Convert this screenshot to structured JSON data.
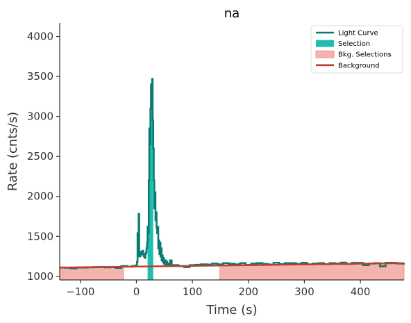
{
  "chart_data": {
    "type": "line",
    "title": "na",
    "xlabel": "Time (s)",
    "ylabel": "Rate (cnts/s)",
    "xlim": [
      -137,
      478
    ],
    "ylim": [
      955,
      4170
    ],
    "x_ticks": [
      -100,
      0,
      100,
      200,
      300,
      400
    ],
    "x_tick_labels": [
      "−100",
      "0",
      "100",
      "200",
      "300",
      "400"
    ],
    "y_ticks": [
      1000,
      1500,
      2000,
      2500,
      3000,
      3500,
      4000
    ],
    "y_tick_labels": [
      "1000",
      "1500",
      "2000",
      "2500",
      "3000",
      "3500",
      "4000"
    ],
    "grid": false,
    "legend_position": "top-right",
    "colors": {
      "light_curve": "#0b7a72",
      "selection": "#1fbfb0",
      "bkg_selection_fill": "#f4b3ad",
      "bkg_selection_edge": "#e8847b",
      "background": "#c23b2b"
    },
    "legend": [
      {
        "label": "Light Curve",
        "kind": "line",
        "color": "#0b7a72"
      },
      {
        "label": "Selection",
        "kind": "patch",
        "color": "#1fbfb0"
      },
      {
        "label": "Bkg. Selections",
        "kind": "patch",
        "color": "#f4b3ad"
      },
      {
        "label": "Background",
        "kind": "line",
        "color": "#c23b2b"
      }
    ],
    "bkg_selections": [
      [
        -137,
        -23
      ],
      [
        149,
        478
      ]
    ],
    "selection": [
      20,
      30
    ],
    "background_line": {
      "x": [
        -137,
        478
      ],
      "y": [
        1110,
        1165
      ]
    },
    "light_curve": [
      [
        -137,
        1110
      ],
      [
        -127,
        1108
      ],
      [
        -117,
        1100
      ],
      [
        -107,
        1110
      ],
      [
        -97,
        1110
      ],
      [
        -87,
        1113
      ],
      [
        -77,
        1115
      ],
      [
        -67,
        1118
      ],
      [
        -57,
        1112
      ],
      [
        -47,
        1115
      ],
      [
        -37,
        1105
      ],
      [
        -27,
        1128
      ],
      [
        -17,
        1122
      ],
      [
        -7,
        1130
      ],
      [
        0,
        1140
      ],
      [
        1,
        1180
      ],
      [
        2,
        1540
      ],
      [
        3,
        1250
      ],
      [
        4,
        1780
      ],
      [
        5,
        1290
      ],
      [
        6,
        1250
      ],
      [
        7,
        1300
      ],
      [
        8,
        1270
      ],
      [
        9,
        1310
      ],
      [
        10,
        1290
      ],
      [
        11,
        1320
      ],
      [
        12,
        1280
      ],
      [
        13,
        1250
      ],
      [
        14,
        1270
      ],
      [
        15,
        1230
      ],
      [
        16,
        1280
      ],
      [
        17,
        1300
      ],
      [
        18,
        1350
      ],
      [
        19,
        1420
      ],
      [
        20,
        1620
      ],
      [
        21,
        1540
      ],
      [
        22,
        2200
      ],
      [
        23,
        2850
      ],
      [
        24,
        2650
      ],
      [
        25,
        3100
      ],
      [
        26,
        3400
      ],
      [
        27,
        3300
      ],
      [
        28,
        3470
      ],
      [
        29,
        2950
      ],
      [
        30,
        2600
      ],
      [
        31,
        2200
      ],
      [
        32,
        1850
      ],
      [
        33,
        2050
      ],
      [
        34,
        1700
      ],
      [
        35,
        1800
      ],
      [
        36,
        1600
      ],
      [
        37,
        1540
      ],
      [
        38,
        1620
      ],
      [
        39,
        1350
      ],
      [
        40,
        1450
      ],
      [
        41,
        1280
      ],
      [
        42,
        1420
      ],
      [
        43,
        1250
      ],
      [
        44,
        1350
      ],
      [
        45,
        1200
      ],
      [
        46,
        1260
      ],
      [
        47,
        1180
      ],
      [
        48,
        1230
      ],
      [
        49,
        1160
      ],
      [
        50,
        1200
      ],
      [
        51,
        1150
      ],
      [
        52,
        1200
      ],
      [
        53,
        1140
      ],
      [
        54,
        1180
      ],
      [
        55,
        1160
      ],
      [
        57,
        1130
      ],
      [
        60,
        1200
      ],
      [
        63,
        1130
      ],
      [
        65,
        1140
      ],
      [
        75,
        1128
      ],
      [
        85,
        1115
      ],
      [
        95,
        1140
      ],
      [
        105,
        1145
      ],
      [
        115,
        1150
      ],
      [
        125,
        1148
      ],
      [
        135,
        1160
      ],
      [
        145,
        1150
      ],
      [
        155,
        1165
      ],
      [
        165,
        1158
      ],
      [
        175,
        1150
      ],
      [
        185,
        1165
      ],
      [
        195,
        1142
      ],
      [
        205,
        1160
      ],
      [
        215,
        1165
      ],
      [
        225,
        1155
      ],
      [
        235,
        1148
      ],
      [
        245,
        1170
      ],
      [
        255,
        1152
      ],
      [
        265,
        1165
      ],
      [
        275,
        1165
      ],
      [
        285,
        1155
      ],
      [
        295,
        1170
      ],
      [
        305,
        1150
      ],
      [
        315,
        1160
      ],
      [
        325,
        1165
      ],
      [
        335,
        1152
      ],
      [
        345,
        1165
      ],
      [
        355,
        1160
      ],
      [
        365,
        1172
      ],
      [
        375,
        1155
      ],
      [
        385,
        1168
      ],
      [
        395,
        1168
      ],
      [
        405,
        1140
      ],
      [
        415,
        1160
      ],
      [
        425,
        1165
      ],
      [
        435,
        1125
      ],
      [
        445,
        1170
      ],
      [
        455,
        1168
      ],
      [
        465,
        1160
      ],
      [
        478,
        1165
      ]
    ]
  }
}
